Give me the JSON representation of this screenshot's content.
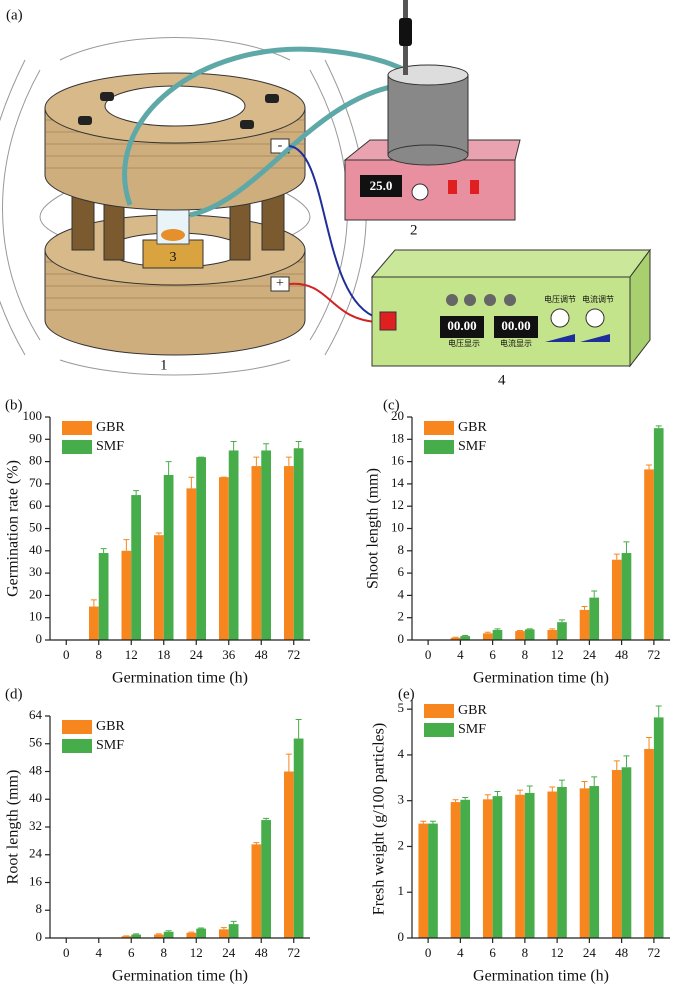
{
  "diagram": {
    "panel_label": "(a)",
    "coil_label": "1",
    "stirrer_label": "2",
    "sample_label": "3",
    "supply_label": "4",
    "stirrer_display": "25.0",
    "minus": "-",
    "plus": "+",
    "voltage_display": "00.00",
    "current_display": "00.00",
    "voltage_adjust": "电压调节",
    "current_adjust": "电流调节",
    "voltage_show": "电压显示",
    "current_show": "电流显示"
  },
  "chart_data": [
    {
      "type": "bar",
      "panel_label": "(b)",
      "x_label": "Germination time (h)",
      "y_label": "Germination rate (%)",
      "categories": [
        "0",
        "8",
        "12",
        "18",
        "24",
        "36",
        "48",
        "72"
      ],
      "ylim": [
        0,
        100
      ],
      "yticks": [
        0,
        10,
        20,
        30,
        40,
        50,
        60,
        70,
        80,
        90,
        100
      ],
      "series": [
        {
          "name": "GBR",
          "color": "#f7861f",
          "values": [
            0,
            15,
            40,
            47,
            68,
            73,
            78,
            78
          ],
          "errors": [
            0,
            3,
            5,
            1,
            5,
            0,
            4,
            4
          ]
        },
        {
          "name": "SMF",
          "color": "#46ad4a",
          "values": [
            0,
            39,
            65,
            74,
            82,
            85,
            85,
            86
          ],
          "errors": [
            0,
            2,
            2,
            6,
            0,
            4,
            3,
            3
          ]
        }
      ]
    },
    {
      "type": "bar",
      "panel_label": "(c)",
      "x_label": "Germination time (h)",
      "y_label": "Shoot length (mm)",
      "categories": [
        "0",
        "4",
        "6",
        "8",
        "12",
        "24",
        "48",
        "72"
      ],
      "ylim": [
        0,
        20
      ],
      "yticks": [
        0,
        2,
        4,
        6,
        8,
        10,
        12,
        14,
        16,
        18,
        20
      ],
      "series": [
        {
          "name": "GBR",
          "color": "#f7861f",
          "values": [
            0,
            0.2,
            0.6,
            0.8,
            0.9,
            2.7,
            7.2,
            15.3
          ],
          "errors": [
            0,
            0.05,
            0.1,
            0.05,
            0.1,
            0.3,
            0.5,
            0.4
          ]
        },
        {
          "name": "SMF",
          "color": "#46ad4a",
          "values": [
            0,
            0.35,
            0.9,
            0.95,
            1.6,
            3.8,
            7.8,
            19.0
          ],
          "errors": [
            0,
            0.05,
            0.1,
            0.05,
            0.2,
            0.6,
            1.0,
            0.2
          ]
        }
      ]
    },
    {
      "type": "bar",
      "panel_label": "(d)",
      "x_label": "Germination time (h)",
      "y_label": "Root length (mm)",
      "categories": [
        "0",
        "4",
        "6",
        "8",
        "12",
        "24",
        "48",
        "72"
      ],
      "ylim": [
        0,
        64
      ],
      "yticks": [
        0,
        8,
        16,
        24,
        32,
        40,
        48,
        56,
        64
      ],
      "series": [
        {
          "name": "GBR",
          "color": "#f7861f",
          "values": [
            0,
            0,
            0.5,
            1,
            1.5,
            2.5,
            27,
            48
          ],
          "errors": [
            0,
            0,
            0.1,
            0.2,
            0.2,
            0.5,
            0.5,
            5
          ]
        },
        {
          "name": "SMF",
          "color": "#46ad4a",
          "values": [
            0,
            0,
            1,
            1.8,
            2.7,
            4,
            34,
            57.5
          ],
          "errors": [
            0,
            0,
            0.2,
            0.3,
            0.2,
            0.8,
            0.5,
            5.5
          ]
        }
      ]
    },
    {
      "type": "bar",
      "panel_label": "(e)",
      "x_label": "Germination time (h)",
      "y_label": "Fresh weight (g/100 particles)",
      "categories": [
        "0",
        "4",
        "6",
        "8",
        "12",
        "24",
        "48",
        "72"
      ],
      "ylim": [
        0,
        5.2
      ],
      "yticks": [
        0,
        1,
        2,
        3,
        4,
        5
      ],
      "series": [
        {
          "name": "GBR",
          "color": "#f7861f",
          "values": [
            2.5,
            2.97,
            3.03,
            3.13,
            3.2,
            3.27,
            3.67,
            4.13
          ],
          "errors": [
            0.05,
            0.05,
            0.1,
            0.1,
            0.1,
            0.15,
            0.2,
            0.25
          ]
        },
        {
          "name": "SMF",
          "color": "#46ad4a",
          "values": [
            2.5,
            3.02,
            3.1,
            3.17,
            3.3,
            3.32,
            3.73,
            4.82
          ],
          "errors": [
            0.05,
            0.05,
            0.1,
            0.15,
            0.15,
            0.2,
            0.25,
            0.25
          ]
        }
      ]
    }
  ]
}
